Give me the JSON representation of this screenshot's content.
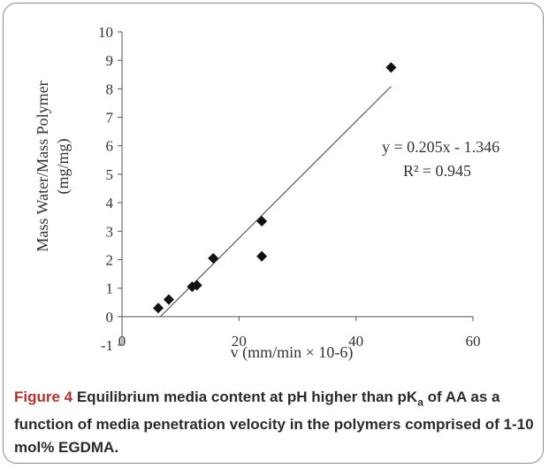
{
  "figure": {
    "caption_lead": "Figure 4",
    "caption_body_1": " Equilibrium media content at pH higher than pK",
    "caption_sub": "a",
    "caption_body_2": " of AA as a function of media penetration velocity in the polymers comprised of 1-10 mol% EGDMA."
  },
  "chart_data": {
    "type": "scatter",
    "xlabel": "v (mm/min × 10-6)",
    "ylabel_line1": "Mass Water/Mass Polymer",
    "ylabel_line2": "(mg/mg)",
    "xlim": [
      0,
      60
    ],
    "ylim": [
      -1,
      10
    ],
    "xticks": [
      0,
      20,
      40,
      60
    ],
    "yticks": [
      -1,
      0,
      1,
      2,
      3,
      4,
      5,
      6,
      7,
      8,
      9,
      10
    ],
    "points": [
      {
        "x": 6.2,
        "y": 0.3
      },
      {
        "x": 8.0,
        "y": 0.6
      },
      {
        "x": 12.0,
        "y": 1.05
      },
      {
        "x": 12.8,
        "y": 1.1
      },
      {
        "x": 15.6,
        "y": 2.05
      },
      {
        "x": 23.9,
        "y": 3.35
      },
      {
        "x": 23.9,
        "y": 2.12
      },
      {
        "x": 46.0,
        "y": 8.75
      }
    ],
    "trendline": {
      "slope": 0.205,
      "intercept": -1.346,
      "x_start": 6.6,
      "x_end": 46.0
    },
    "equation": "y = 0.205x - 1.346",
    "r_squared": "R² = 0.945",
    "marker": "diamond",
    "marker_color": "#111111",
    "line_color": "#666666",
    "grid": false
  }
}
